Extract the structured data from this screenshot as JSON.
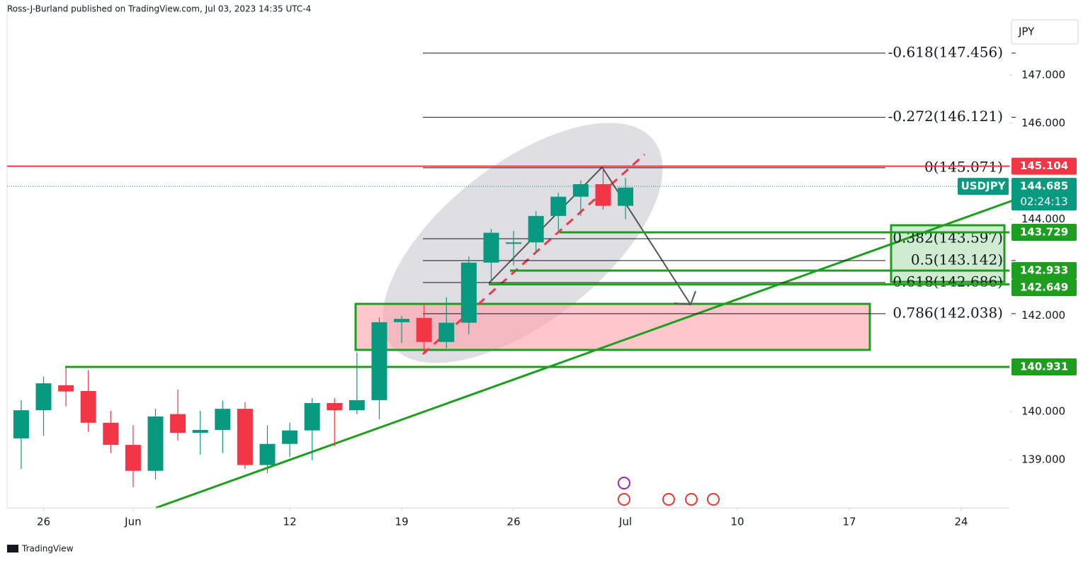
{
  "header": "Ross-J-Burland published on TradingView.com, Jul 03, 2023 14:35 UTC-4",
  "footer": "TradingView",
  "chart_data": {
    "type": "candlestick",
    "currency": "JPY",
    "symbol": "USDJPY",
    "countdown": "02:24:13",
    "up_color": "#089981",
    "down_color": "#f23645",
    "open": [
      139.445,
      140.03,
      140.55,
      140.43,
      139.77,
      139.31,
      138.77,
      139.95,
      139.56,
      139.62,
      140.06,
      138.89,
      139.33,
      139.61,
      140.18,
      140.03,
      140.24,
      141.86,
      141.95,
      141.45,
      141.85,
      143.1,
      143.49,
      143.52,
      144.07,
      144.47,
      144.73,
      144.28
    ],
    "high": [
      140.24,
      140.73,
      140.93,
      140.86,
      140.02,
      139.72,
      140.06,
      140.46,
      140.02,
      140.23,
      140.2,
      139.72,
      139.77,
      140.28,
      140.28,
      141.23,
      141.96,
      141.99,
      142.23,
      142.38,
      143.23,
      143.8,
      143.76,
      144.17,
      144.55,
      144.81,
      145.09,
      144.86
    ],
    "low": [
      138.81,
      139.5,
      140.11,
      139.58,
      139.14,
      138.43,
      138.59,
      139.4,
      139.11,
      139.14,
      138.81,
      138.72,
      139.06,
      138.99,
      139.28,
      139.95,
      139.84,
      141.43,
      141.2,
      141.32,
      141.61,
      142.7,
      143.04,
      143.29,
      143.77,
      144.07,
      144.2,
      144.0
    ],
    "close": [
      140.03,
      140.59,
      140.42,
      139.77,
      139.31,
      138.77,
      139.9,
      139.56,
      139.62,
      140.06,
      138.89,
      139.33,
      139.61,
      140.18,
      140.03,
      140.24,
      141.86,
      141.93,
      141.45,
      141.85,
      143.1,
      143.72,
      143.52,
      144.07,
      144.47,
      144.73,
      144.28,
      144.66
    ],
    "xlim": [
      -0.63,
      44.15
    ],
    "xticks": [
      {
        "value": 1,
        "label": "26"
      },
      {
        "value": 5,
        "label": "Jun"
      },
      {
        "value": 12,
        "label": "12"
      },
      {
        "value": 17,
        "label": "19"
      },
      {
        "value": 22,
        "label": "26"
      },
      {
        "value": 27,
        "label": "Jul"
      },
      {
        "value": 32,
        "label": "10"
      },
      {
        "value": 37,
        "label": "17"
      },
      {
        "value": 42,
        "label": "24"
      }
    ],
    "ylim": [
      138.0,
      148.56
    ],
    "yticks": [
      {
        "value": 147,
        "label": "147.000"
      },
      {
        "value": 146,
        "label": "146.000"
      },
      {
        "value": 144,
        "label": "144.000"
      },
      {
        "value": 142,
        "label": "142.000"
      },
      {
        "value": 140,
        "label": "140.000"
      },
      {
        "value": 139,
        "label": "139.000"
      }
    ],
    "fib_levels": [
      {
        "value": 147.456,
        "label": "-0.618(147.456)"
      },
      {
        "value": 146.121,
        "label": "-0.272(146.121)"
      },
      {
        "value": 145.071,
        "label": "0(145.071)"
      },
      {
        "value": 143.597,
        "label": "0.382(143.597)"
      },
      {
        "value": 143.142,
        "label": "0.5(143.142)"
      },
      {
        "value": 142.686,
        "label": "0.618(142.686)"
      },
      {
        "value": 142.038,
        "label": "0.786(142.038)"
      }
    ],
    "price_levels": [
      {
        "value": 145.104,
        "label": "145.104",
        "color": "#f23645"
      },
      {
        "value": 143.729,
        "label": "143.729",
        "color": "#1e9e1e"
      },
      {
        "value": 142.933,
        "label": "142.933",
        "color": "#1e9e1e"
      },
      {
        "value": 142.649,
        "label": "142.649",
        "color": "#1e9e1e"
      },
      {
        "value": 140.931,
        "label": "140.931",
        "color": "#1e9e1e"
      }
    ],
    "last_price": {
      "value": 144.685,
      "label": "144.685"
    }
  }
}
